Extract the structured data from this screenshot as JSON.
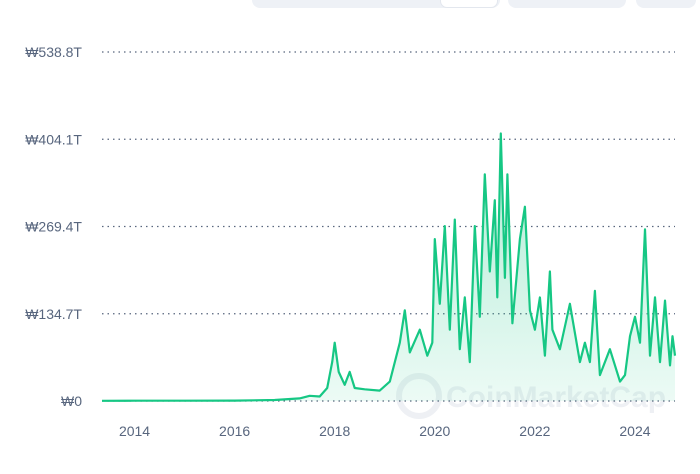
{
  "chart_data": {
    "type": "area",
    "title": "",
    "xlabel": "",
    "ylabel": "",
    "line_color": "#16c784",
    "fill_color": "#16c784",
    "grid": "horizontal-dotted",
    "watermark": "CoinMarketCap",
    "y_ticks": [
      "₩538.8T",
      "₩404.1T",
      "₩269.4T",
      "₩134.7T",
      "₩0"
    ],
    "y_tick_values": [
      538.8,
      404.1,
      269.4,
      134.7,
      0
    ],
    "x_ticks": [
      "2014",
      "2016",
      "2018",
      "2020",
      "2022",
      "2024"
    ],
    "x_tick_values": [
      2014,
      2016,
      2018,
      2020,
      2022,
      2024
    ],
    "xlim": [
      2013.35,
      2024.8
    ],
    "ylim": [
      0,
      538.8
    ],
    "y_unit": "₩ trillions",
    "series": [
      {
        "points": [
          [
            2013.35,
            0.3
          ],
          [
            2014.0,
            0.5
          ],
          [
            2015.0,
            0.4
          ],
          [
            2016.0,
            0.6
          ],
          [
            2016.8,
            1.5
          ],
          [
            2017.3,
            4
          ],
          [
            2017.5,
            8
          ],
          [
            2017.7,
            7
          ],
          [
            2017.85,
            20
          ],
          [
            2017.95,
            60
          ],
          [
            2018.0,
            90
          ],
          [
            2018.08,
            45
          ],
          [
            2018.2,
            25
          ],
          [
            2018.3,
            45
          ],
          [
            2018.4,
            20
          ],
          [
            2018.6,
            18
          ],
          [
            2018.9,
            16
          ],
          [
            2019.1,
            30
          ],
          [
            2019.3,
            90
          ],
          [
            2019.4,
            140
          ],
          [
            2019.5,
            75
          ],
          [
            2019.7,
            110
          ],
          [
            2019.85,
            70
          ],
          [
            2019.95,
            90
          ],
          [
            2020.0,
            250
          ],
          [
            2020.1,
            150
          ],
          [
            2020.2,
            270
          ],
          [
            2020.3,
            110
          ],
          [
            2020.4,
            280
          ],
          [
            2020.5,
            80
          ],
          [
            2020.6,
            160
          ],
          [
            2020.7,
            60
          ],
          [
            2020.8,
            270
          ],
          [
            2020.9,
            130
          ],
          [
            2021.0,
            350
          ],
          [
            2021.1,
            200
          ],
          [
            2021.2,
            310
          ],
          [
            2021.25,
            160
          ],
          [
            2021.32,
            413
          ],
          [
            2021.4,
            190
          ],
          [
            2021.45,
            350
          ],
          [
            2021.55,
            120
          ],
          [
            2021.7,
            250
          ],
          [
            2021.8,
            300
          ],
          [
            2021.9,
            140
          ],
          [
            2022.0,
            110
          ],
          [
            2022.1,
            160
          ],
          [
            2022.2,
            70
          ],
          [
            2022.3,
            200
          ],
          [
            2022.35,
            110
          ],
          [
            2022.5,
            80
          ],
          [
            2022.7,
            150
          ],
          [
            2022.9,
            60
          ],
          [
            2023.0,
            90
          ],
          [
            2023.1,
            60
          ],
          [
            2023.2,
            170
          ],
          [
            2023.3,
            40
          ],
          [
            2023.5,
            80
          ],
          [
            2023.7,
            30
          ],
          [
            2023.8,
            40
          ],
          [
            2023.9,
            100
          ],
          [
            2024.0,
            130
          ],
          [
            2024.1,
            90
          ],
          [
            2024.2,
            265
          ],
          [
            2024.3,
            70
          ],
          [
            2024.4,
            160
          ],
          [
            2024.5,
            60
          ],
          [
            2024.6,
            155
          ],
          [
            2024.7,
            55
          ],
          [
            2024.75,
            100
          ],
          [
            2024.8,
            70
          ]
        ]
      }
    ]
  }
}
